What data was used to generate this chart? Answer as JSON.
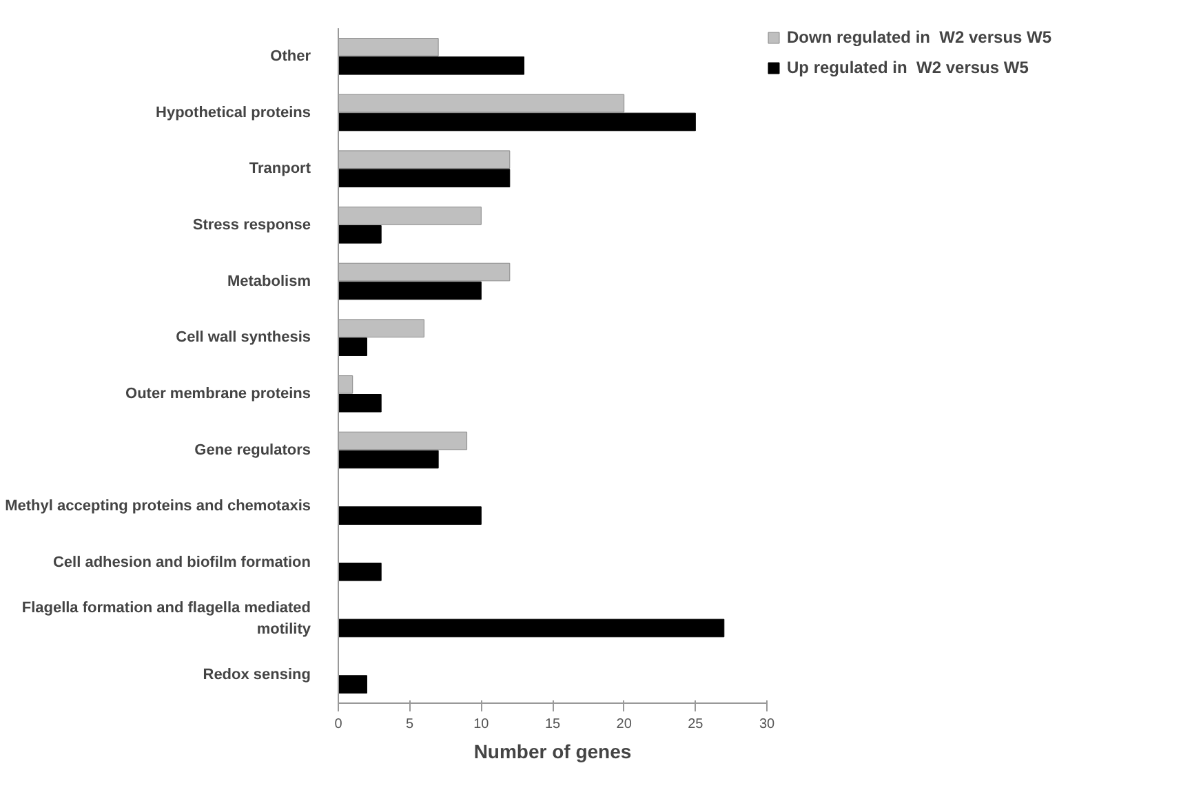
{
  "chart_data": {
    "type": "bar",
    "orientation": "horizontal",
    "xlabel": "Number of genes",
    "categories": [
      "Other",
      "Hypothetical proteins",
      "Tranport",
      "Stress response",
      "Metabolism",
      "Cell wall synthesis",
      "Outer membrane proteins",
      "Gene regulators",
      "Methyl accepting proteins and chemotaxis",
      "Cell adhesion and biofilm formation",
      "Flagella formation and flagella mediated\nmotility",
      "Redox sensing"
    ],
    "series": [
      {
        "name": "Down regulated in  W2 versus W5",
        "color": "#bfbfbf",
        "values": [
          7,
          20,
          12,
          10,
          12,
          6,
          1,
          9,
          null,
          null,
          null,
          null
        ]
      },
      {
        "name": "Up regulated in  W2 versus W5",
        "color": "#000000",
        "values": [
          13,
          25,
          12,
          3,
          10,
          2,
          3,
          7,
          10,
          3,
          27,
          2
        ]
      }
    ],
    "xlim": [
      0,
      30
    ],
    "xticks": [
      0,
      5,
      10,
      15,
      20,
      25,
      30
    ],
    "grid": false,
    "legend": "top right"
  }
}
